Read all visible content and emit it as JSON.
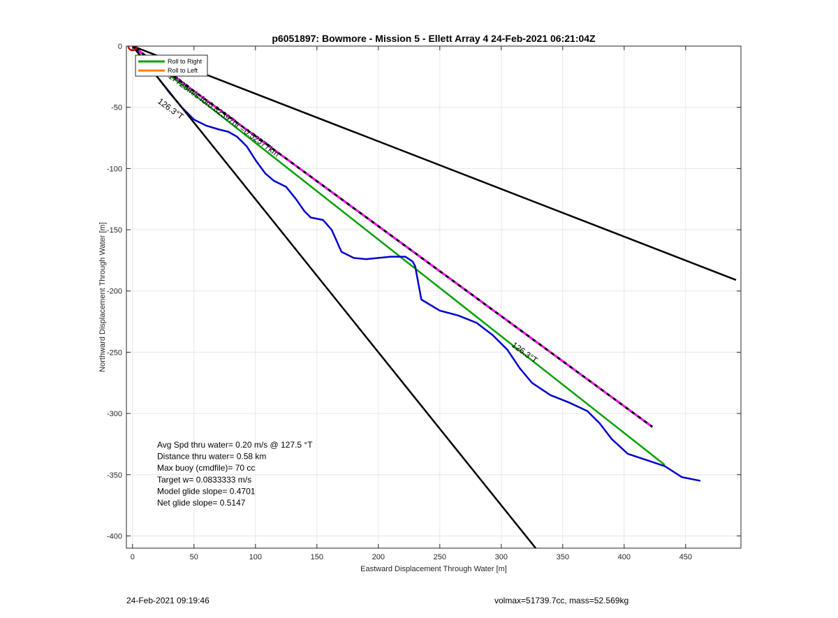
{
  "footer": {
    "left": "24-Feb-2021 09:19:46",
    "right": "volmax=51739.7cc, mass=52.569kg"
  },
  "chart_data": {
    "type": "line",
    "title": "p6051897: Bowmore - Mission 5 - Ellett Array 4 24-Feb-2021 06:21:04Z",
    "xlabel": "Eastward Displacement Through Water [m]",
    "ylabel": "Northward Displacement Through Water [m]",
    "xlim": [
      -5,
      495
    ],
    "ylim": [
      -410,
      0
    ],
    "xticks": [
      0,
      50,
      100,
      150,
      200,
      250,
      300,
      350,
      400,
      450
    ],
    "yticks": [
      0,
      -50,
      -100,
      -150,
      -200,
      -250,
      -300,
      -350,
      -400
    ],
    "grid": true,
    "legend": {
      "location": "top-left",
      "entries": [
        {
          "label": "Roll to Right",
          "color": "#00a000"
        },
        {
          "label": "Roll to Left",
          "color": "#ff8000"
        }
      ]
    },
    "series": [
      {
        "name": "Roll to Right",
        "color": "#00a000",
        "x": [
          0,
          433
        ],
        "y": [
          0,
          -342
        ]
      },
      {
        "color": "#0000cc",
        "x": [
          0,
          10,
          20,
          30,
          40,
          50,
          60,
          70,
          78,
          85,
          93,
          100,
          108,
          115,
          125,
          133,
          140,
          145,
          155,
          162,
          170,
          180,
          190,
          200,
          210,
          222,
          228,
          230,
          235,
          250,
          265,
          280,
          293,
          305,
          315,
          325,
          340,
          355,
          370,
          380,
          390,
          403,
          418,
          433,
          447,
          462
        ],
        "y": [
          0,
          -12,
          -25,
          -38,
          -50,
          -60,
          -65,
          -68,
          -70,
          -74,
          -82,
          -93,
          -104,
          -110,
          -115,
          -125,
          -135,
          -140,
          -142,
          -150,
          -168,
          -173,
          -174,
          -173,
          -172,
          -172,
          -176,
          -180,
          -207,
          -216,
          -220,
          -226,
          -236,
          -248,
          -263,
          -275,
          -285,
          -291,
          -298,
          -308,
          -321,
          -333,
          -338,
          -343,
          -352,
          -355
        ]
      },
      {
        "color": "#ff00ff",
        "style": "dashed",
        "x": [
          0,
          423
        ],
        "y": [
          0,
          -311
        ]
      },
      {
        "color": "#000000",
        "x": [
          0,
          491
        ],
        "y": [
          0,
          -191
        ]
      },
      {
        "color": "#000000",
        "x": [
          0,
          328
        ],
        "y": [
          0,
          -410
        ]
      }
    ],
    "start_marker": {
      "x": 0,
      "y": 0,
      "color": "#cc0000"
    },
    "annotations": [
      {
        "text": "0.17725m/s for0.82397hr =0.52577km",
        "x": 24,
        "y": -22
      },
      {
        "text": "126.3°T",
        "x": 20,
        "y": -46
      },
      {
        "text": "126.3°T",
        "x": 308,
        "y": -245
      }
    ],
    "stats": [
      "Avg Spd thru water=  0.20 m/s @ 127.5 °T",
      "Distance thru water=  0.58 km",
      "Max buoy (cmdfile)= 70 cc",
      "Target w= 0.0833333 m/s",
      "Model glide slope= 0.4701",
      "Net glide slope= 0.5147"
    ]
  }
}
